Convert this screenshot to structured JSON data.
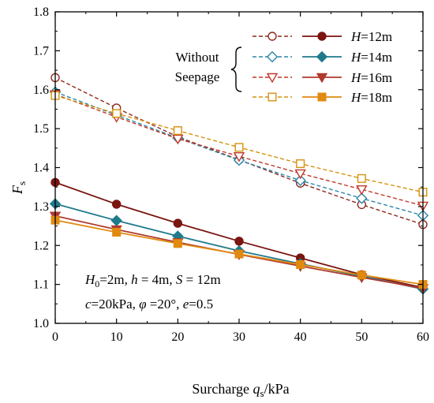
{
  "chart_data": {
    "type": "line",
    "xlabel": "Surcharge q_s/kPa",
    "xlabel_parts": {
      "main": "Surcharge ",
      "var": "q",
      "sub": "s",
      "unit": "/kPa"
    },
    "ylabel_parts": {
      "var": "F",
      "sub": "s"
    },
    "x_ticks": [
      "0",
      "10",
      "20",
      "30",
      "40",
      "50",
      "60"
    ],
    "y_ticks": [
      "1.0",
      "1.1",
      "1.2",
      "1.3",
      "1.4",
      "1.5",
      "1.6",
      "1.7",
      "1.8"
    ],
    "xlim": [
      0,
      60
    ],
    "ylim": [
      1.0,
      1.8
    ],
    "grid": false,
    "legend": {
      "placement": "top-right",
      "group_label_line1": "Without",
      "group_label_line2": "Seepage",
      "entries": [
        {
          "var": "H",
          "text": "=12m"
        },
        {
          "var": "H",
          "text": "=14m"
        },
        {
          "var": "H",
          "text": "=16m"
        },
        {
          "var": "H",
          "text": "=18m"
        }
      ]
    },
    "annotations": {
      "line1": {
        "H0_var": "H",
        "H0_sub": "0",
        "H0_val": "=2m, ",
        "h_var": "h",
        "h_val": " = 4m, ",
        "S_var": "S",
        "S_val": " = 12m"
      },
      "line2": {
        "c_var": "c",
        "c_val": "=20kPa, ",
        "phi_var": "φ",
        "phi_val": " =20°, ",
        "e_var": "e",
        "e_val": "=0.5"
      }
    },
    "x": [
      0,
      10,
      20,
      30,
      40,
      50,
      60
    ],
    "series": [
      {
        "name": "H=12m (Without Seepage)",
        "group": "without_seepage",
        "marker": "circle",
        "filled": false,
        "dashed": true,
        "color": "#8b2a1e",
        "values": [
          1.631,
          1.553,
          1.479,
          1.42,
          1.36,
          1.305,
          1.254
        ]
      },
      {
        "name": "H=14m (Without Seepage)",
        "group": "without_seepage",
        "marker": "diamond",
        "filled": false,
        "dashed": true,
        "color": "#2a86a8",
        "values": [
          1.594,
          1.535,
          1.476,
          1.419,
          1.367,
          1.321,
          1.277
        ]
      },
      {
        "name": "H=16m (Without Seepage)",
        "group": "without_seepage",
        "marker": "triangle-down",
        "filled": false,
        "dashed": true,
        "color": "#c0392b",
        "values": [
          1.588,
          1.53,
          1.474,
          1.429,
          1.385,
          1.344,
          1.302
        ]
      },
      {
        "name": "H=18m (Without Seepage)",
        "group": "without_seepage",
        "marker": "square",
        "filled": false,
        "dashed": true,
        "color": "#d4920f",
        "values": [
          1.585,
          1.539,
          1.495,
          1.452,
          1.41,
          1.372,
          1.337
        ]
      },
      {
        "name": "H=12m",
        "group": "with_seepage",
        "marker": "circle",
        "filled": true,
        "dashed": false,
        "color": "#7a1510",
        "values": [
          1.362,
          1.306,
          1.257,
          1.211,
          1.168,
          1.125,
          1.092
        ]
      },
      {
        "name": "H=14m",
        "group": "with_seepage",
        "marker": "diamond",
        "filled": true,
        "dashed": false,
        "color": "#1f7a8c",
        "values": [
          1.307,
          1.264,
          1.224,
          1.186,
          1.153,
          1.121,
          1.088
        ]
      },
      {
        "name": "H=16m",
        "group": "with_seepage",
        "marker": "triangle-down",
        "filled": true,
        "dashed": false,
        "color": "#b03a2e",
        "values": [
          1.276,
          1.241,
          1.208,
          1.177,
          1.147,
          1.118,
          1.09
        ]
      },
      {
        "name": "H=18m",
        "group": "with_seepage",
        "marker": "square",
        "filled": true,
        "dashed": false,
        "color": "#e08a10",
        "values": [
          1.265,
          1.234,
          1.205,
          1.178,
          1.151,
          1.124,
          1.1
        ]
      }
    ]
  }
}
